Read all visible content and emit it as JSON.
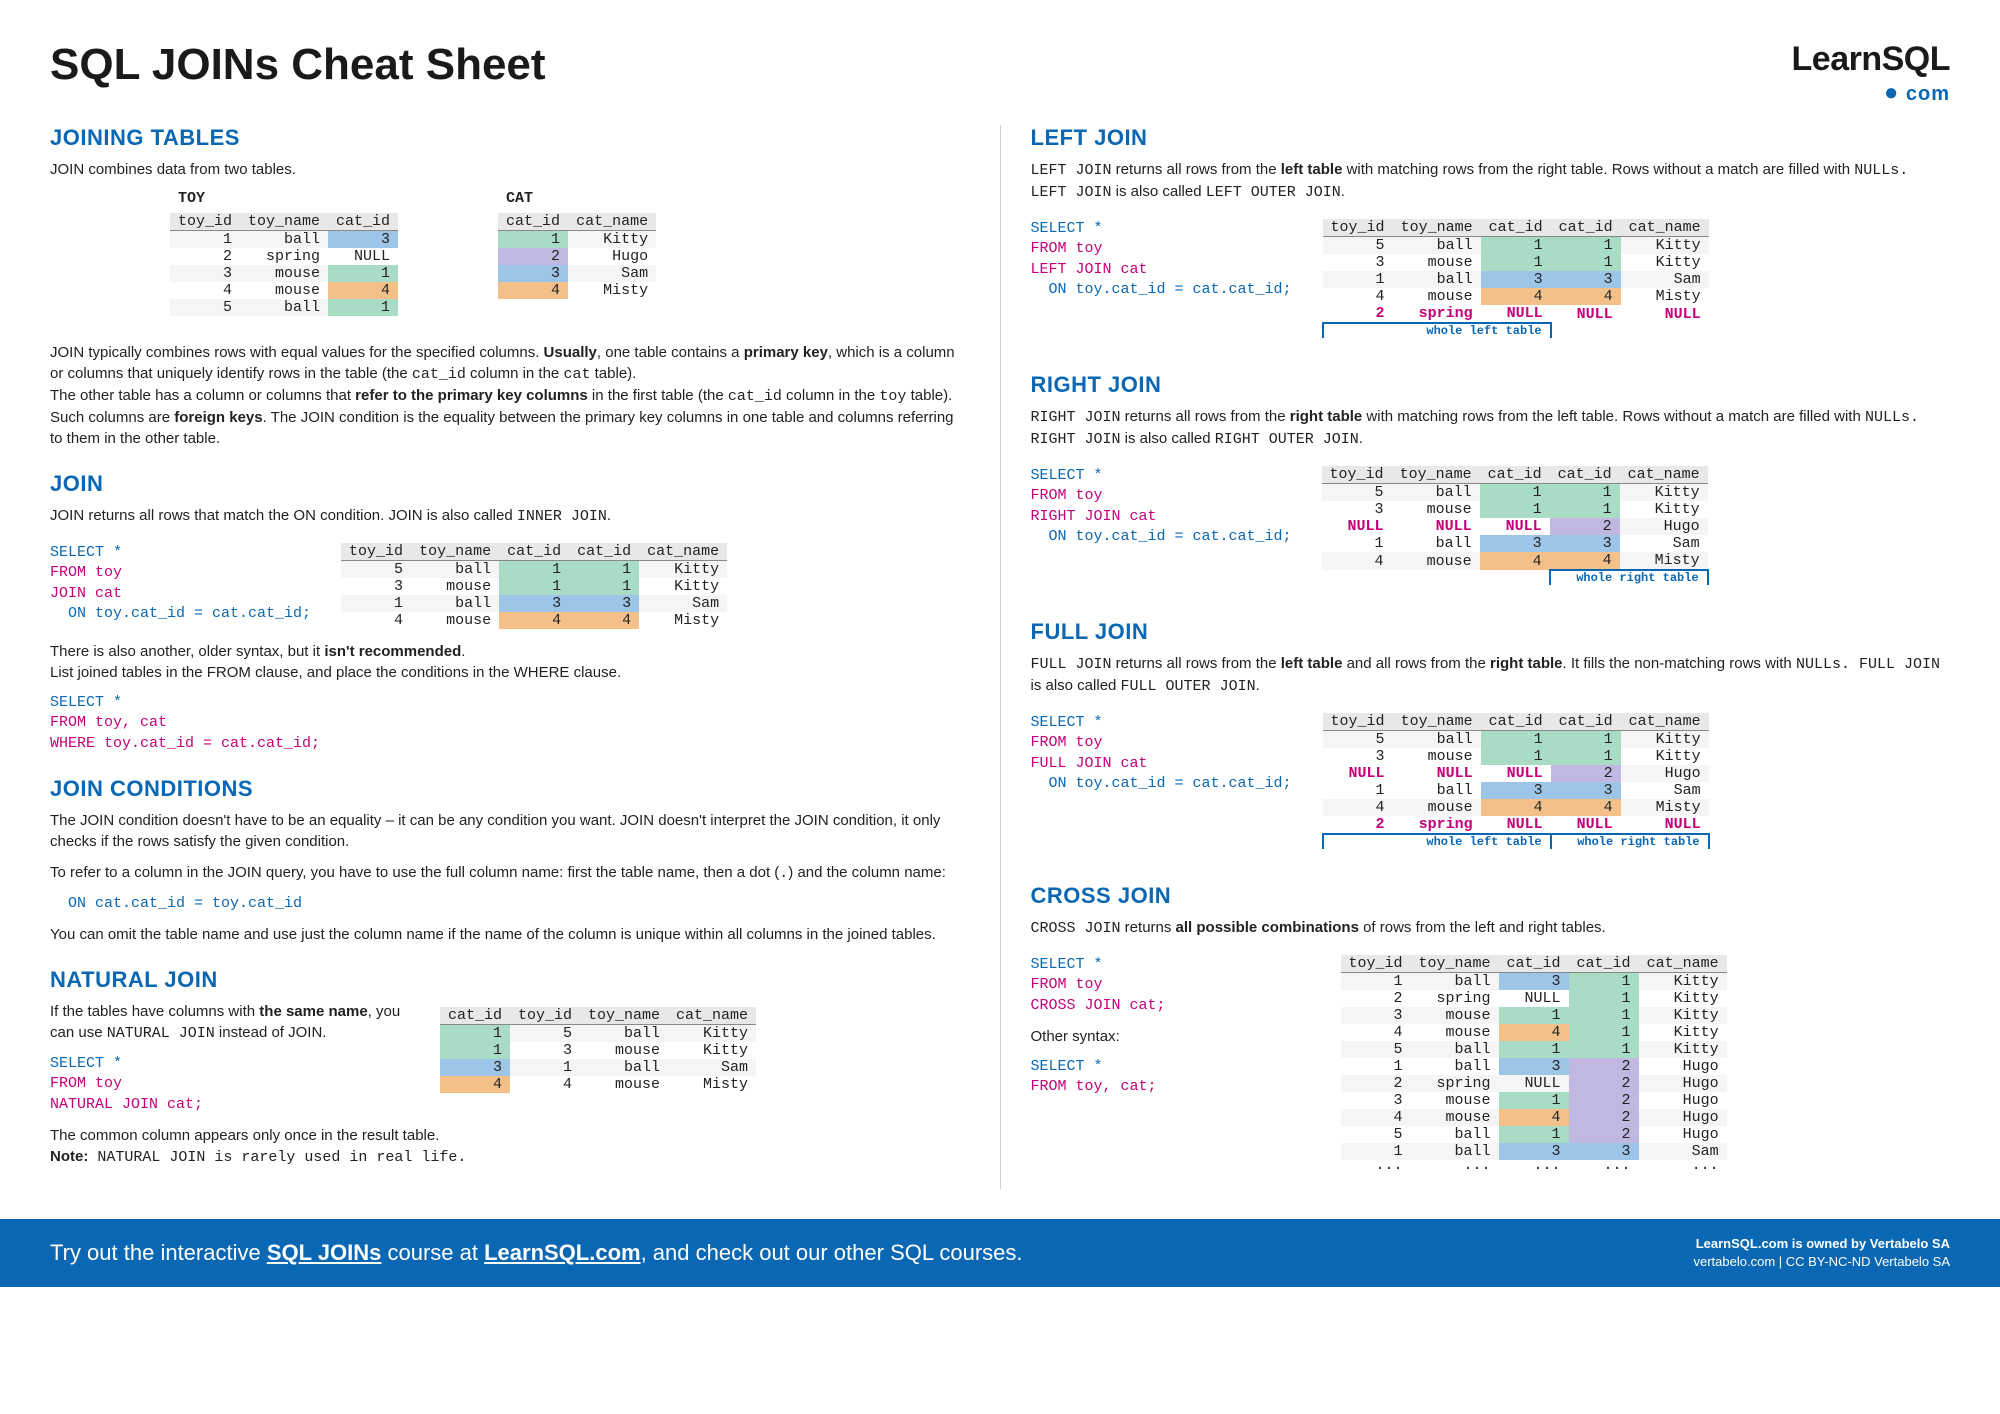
{
  "title": "SQL JOINs Cheat Sheet",
  "logo": {
    "main": "LearnSQL",
    "sub": "com"
  },
  "colors": {
    "heading": "#0a67b3",
    "kw_select": "#0a67b3",
    "kw_from": "#c4007a",
    "kw_join": "#c4007a",
    "kw_on": "#0a67b3",
    "null_pink": "#c4007a",
    "cell_green": "#a9dcc4",
    "cell_purple": "#c0b8e0",
    "cell_blue": "#9cc5e8",
    "cell_orange": "#f3c08a",
    "header_gray": "#e8e8e8",
    "footer_bg": "#0a67b3"
  },
  "left": {
    "joining": {
      "heading": "JOINING TABLES",
      "intro": "JOIN combines data from two tables.",
      "toy_label": "TOY",
      "toy_header": [
        "toy_id",
        "toy_name",
        "cat_id"
      ],
      "toy_rows": [
        [
          "1",
          "ball",
          "3",
          "blue"
        ],
        [
          "2",
          "spring",
          "NULL",
          "plain"
        ],
        [
          "3",
          "mouse",
          "1",
          "green"
        ],
        [
          "4",
          "mouse",
          "4",
          "orange"
        ],
        [
          "5",
          "ball",
          "1",
          "green"
        ]
      ],
      "cat_label": "CAT",
      "cat_header": [
        "cat_id",
        "cat_name"
      ],
      "cat_rows": [
        [
          "1",
          "Kitty",
          "green"
        ],
        [
          "2",
          "Hugo",
          "purple"
        ],
        [
          "3",
          "Sam",
          "blue"
        ],
        [
          "4",
          "Misty",
          "orange"
        ]
      ],
      "para1a": "JOIN typically combines rows with equal values for the specified columns. ",
      "para1b": "Usually",
      "para1c": ", one table contains a ",
      "para1d": "primary key",
      "para1e": ", which is a column or columns that uniquely identify rows in the table (the ",
      "para1f": "cat_id",
      "para1g": " column in the ",
      "para1h": "cat",
      "para1i": " table).",
      "para2a": "The other table has a column or columns that ",
      "para2b": "refer to the primary key columns",
      "para2c": " in the first table (the ",
      "para2d": "cat_id",
      "para2e": " column in the ",
      "para2f": "toy",
      "para2g": " table). Such columns are ",
      "para2h": "foreign keys",
      "para2i": ". The JOIN condition is the equality between the primary key columns in one table and columns referring to them in the other table."
    },
    "join": {
      "heading": "JOIN",
      "intro_a": "JOIN returns all rows that match the ON condition. JOIN is also called ",
      "intro_b": "INNER JOIN",
      "intro_c": ".",
      "sql": {
        "s": "SELECT *",
        "f": "FROM toy",
        "j": "JOIN cat",
        "o": "  ON toy.cat_id = cat.cat_id;"
      },
      "header": [
        "toy_id",
        "toy_name",
        "cat_id",
        "cat_id",
        "cat_name"
      ],
      "rows": [
        [
          "5",
          "ball",
          "1",
          "1",
          "Kitty",
          "green",
          "green"
        ],
        [
          "3",
          "mouse",
          "1",
          "1",
          "Kitty",
          "green",
          "green"
        ],
        [
          "1",
          "ball",
          "3",
          "3",
          "Sam",
          "blue",
          "blue"
        ],
        [
          "4",
          "mouse",
          "4",
          "4",
          "Misty",
          "orange",
          "orange"
        ]
      ],
      "after_a": "There is also another, older syntax, but it ",
      "after_b": "isn't recommended",
      "after_c": ".",
      "after2": "List joined tables in the FROM clause, and place the conditions in the WHERE clause.",
      "sql2": {
        "s": "SELECT *",
        "f": "FROM toy, cat",
        "w": "WHERE toy.cat_id = cat.cat_id;"
      }
    },
    "cond": {
      "heading": "JOIN CONDITIONS",
      "p1": "The JOIN condition doesn't have to be an equality – it can be any condition you want. JOIN doesn't interpret the JOIN condition, it only checks if the rows satisfy the given condition.",
      "p2a": "To refer to a column in the JOIN query, you have to use the full column name: first the table name, then a dot (",
      "p2b": ".",
      "p2c": ") and the column name:",
      "sql": "  ON cat.cat_id = toy.cat_id",
      "p3": "You can omit the table name and use just the column name if the name of the column is unique within all columns in the joined tables."
    },
    "natural": {
      "heading": "NATURAL JOIN",
      "intro_a": "If the tables have columns with ",
      "intro_b": "the same name",
      "intro_c": ", you can use ",
      "intro_d": "NATURAL JOIN",
      "intro_e": " instead of JOIN.",
      "sql": {
        "s": "SELECT *",
        "f": "FROM toy",
        "n": "NATURAL JOIN cat;"
      },
      "header": [
        "cat_id",
        "toy_id",
        "toy_name",
        "cat_name"
      ],
      "rows": [
        [
          "1",
          "5",
          "ball",
          "Kitty",
          "green"
        ],
        [
          "1",
          "3",
          "mouse",
          "Kitty",
          "green"
        ],
        [
          "3",
          "1",
          "ball",
          "Sam",
          "blue"
        ],
        [
          "4",
          "4",
          "mouse",
          "Misty",
          "orange"
        ]
      ],
      "after1": "The common column appears only once in the result table.",
      "after2a": "Note:",
      "after2b": " NATURAL JOIN is rarely used in real life."
    }
  },
  "right": {
    "leftjoin": {
      "heading": "LEFT JOIN",
      "intro_a": "LEFT JOIN",
      "intro_b": " returns all rows from the ",
      "intro_c": "left table",
      "intro_d": " with matching rows from the right table. Rows without a match are filled with ",
      "intro_e": "NULLs. LEFT JOIN",
      "intro_f": " is also called ",
      "intro_g": "LEFT OUTER JOIN",
      "intro_h": ".",
      "sql": {
        "s": "SELECT *",
        "f": "FROM toy",
        "j": "LEFT JOIN cat",
        "o": "  ON toy.cat_id = cat.cat_id;"
      },
      "header": [
        "toy_id",
        "toy_name",
        "cat_id",
        "cat_id",
        "cat_name"
      ],
      "rows": [
        [
          "5",
          "ball",
          "1",
          "1",
          "Kitty",
          "green",
          "green"
        ],
        [
          "3",
          "mouse",
          "1",
          "1",
          "Kitty",
          "green",
          "green"
        ],
        [
          "1",
          "ball",
          "3",
          "3",
          "Sam",
          "blue",
          "blue"
        ],
        [
          "4",
          "mouse",
          "4",
          "4",
          "Misty",
          "orange",
          "orange"
        ],
        [
          "2",
          "spring",
          "NULL",
          "NULL",
          "NULL",
          "pink",
          "pink"
        ]
      ],
      "bracket": "whole left table"
    },
    "rightjoin": {
      "heading": "RIGHT JOIN",
      "intro_a": "RIGHT JOIN",
      "intro_b": " returns all rows from the ",
      "intro_c": "right table",
      "intro_d": " with matching rows from the left table. Rows without a match are filled with ",
      "intro_e": "NULLs. RIGHT JOIN",
      "intro_f": " is also called ",
      "intro_g": "RIGHT OUTER JOIN",
      "intro_h": ".",
      "sql": {
        "s": "SELECT *",
        "f": "FROM toy",
        "j": "RIGHT JOIN cat",
        "o": "  ON toy.cat_id = cat.cat_id;"
      },
      "header": [
        "toy_id",
        "toy_name",
        "cat_id",
        "cat_id",
        "cat_name"
      ],
      "rows": [
        [
          "5",
          "ball",
          "1",
          "1",
          "Kitty",
          "green",
          "green"
        ],
        [
          "3",
          "mouse",
          "1",
          "1",
          "Kitty",
          "green",
          "green"
        ],
        [
          "NULL",
          "NULL",
          "NULL",
          "2",
          "Hugo",
          "pink",
          "purple"
        ],
        [
          "1",
          "ball",
          "3",
          "3",
          "Sam",
          "blue",
          "blue"
        ],
        [
          "4",
          "mouse",
          "4",
          "4",
          "Misty",
          "orange",
          "orange"
        ]
      ],
      "bracket": "whole right table"
    },
    "fulljoin": {
      "heading": "FULL JOIN",
      "intro_a": "FULL JOIN",
      "intro_b": " returns all rows from the ",
      "intro_c": "left table",
      "intro_d": " and all rows from the ",
      "intro_e": "right table",
      "intro_f": ". It fills the non-matching rows with ",
      "intro_g": "NULLs. FULL JOIN",
      "intro_h": " is also called ",
      "intro_i": "FULL OUTER JOIN",
      "intro_j": ".",
      "sql": {
        "s": "SELECT *",
        "f": "FROM toy",
        "j": "FULL JOIN cat",
        "o": "  ON toy.cat_id = cat.cat_id;"
      },
      "header": [
        "toy_id",
        "toy_name",
        "cat_id",
        "cat_id",
        "cat_name"
      ],
      "rows": [
        [
          "5",
          "ball",
          "1",
          "1",
          "Kitty",
          "green",
          "green"
        ],
        [
          "3",
          "mouse",
          "1",
          "1",
          "Kitty",
          "green",
          "green"
        ],
        [
          "NULL",
          "NULL",
          "NULL",
          "2",
          "Hugo",
          "pink",
          "purple"
        ],
        [
          "1",
          "ball",
          "3",
          "3",
          "Sam",
          "blue",
          "blue"
        ],
        [
          "4",
          "mouse",
          "4",
          "4",
          "Misty",
          "orange",
          "orange"
        ],
        [
          "2",
          "spring",
          "NULL",
          "NULL",
          "NULL",
          "pink",
          "pink"
        ]
      ],
      "bracket_l": "whole left table",
      "bracket_r": "whole right table"
    },
    "crossjoin": {
      "heading": "CROSS JOIN",
      "intro_a": "CROSS JOIN",
      "intro_b": " returns ",
      "intro_c": "all possible combinations",
      "intro_d": " of rows from the left and right tables.",
      "sql": {
        "s": "SELECT *",
        "f": "FROM toy",
        "j": "CROSS JOIN cat;"
      },
      "other": "Other syntax:",
      "sql2": {
        "s": "SELECT *",
        "f": "FROM toy, cat;"
      },
      "header": [
        "toy_id",
        "toy_name",
        "cat_id",
        "cat_id",
        "cat_name"
      ],
      "rows": [
        [
          "1",
          "ball",
          "3",
          "1",
          "Kitty",
          "blue",
          "green"
        ],
        [
          "2",
          "spring",
          "NULL",
          "1",
          "Kitty",
          "plain",
          "green"
        ],
        [
          "3",
          "mouse",
          "1",
          "1",
          "Kitty",
          "green",
          "green"
        ],
        [
          "4",
          "mouse",
          "4",
          "1",
          "Kitty",
          "orange",
          "green"
        ],
        [
          "5",
          "ball",
          "1",
          "1",
          "Kitty",
          "green",
          "green"
        ],
        [
          "1",
          "ball",
          "3",
          "2",
          "Hugo",
          "blue",
          "purple"
        ],
        [
          "2",
          "spring",
          "NULL",
          "2",
          "Hugo",
          "plain",
          "purple"
        ],
        [
          "3",
          "mouse",
          "1",
          "2",
          "Hugo",
          "green",
          "purple"
        ],
        [
          "4",
          "mouse",
          "4",
          "2",
          "Hugo",
          "orange",
          "purple"
        ],
        [
          "5",
          "ball",
          "1",
          "2",
          "Hugo",
          "green",
          "purple"
        ],
        [
          "1",
          "ball",
          "3",
          "3",
          "Sam",
          "blue",
          "blue"
        ],
        [
          "···",
          "···",
          "···",
          "···",
          "···",
          "plain",
          "plain"
        ]
      ]
    }
  },
  "footer": {
    "left_a": "Try out the interactive ",
    "left_b": "SQL JOINs",
    "left_c": " course at ",
    "left_d": "LearnSQL.com",
    "left_e": ", and check out our other SQL courses.",
    "right1": "LearnSQL.com is owned by Vertabelo SA",
    "right2": "vertabelo.com | CC BY-NC-ND Vertabelo SA"
  }
}
